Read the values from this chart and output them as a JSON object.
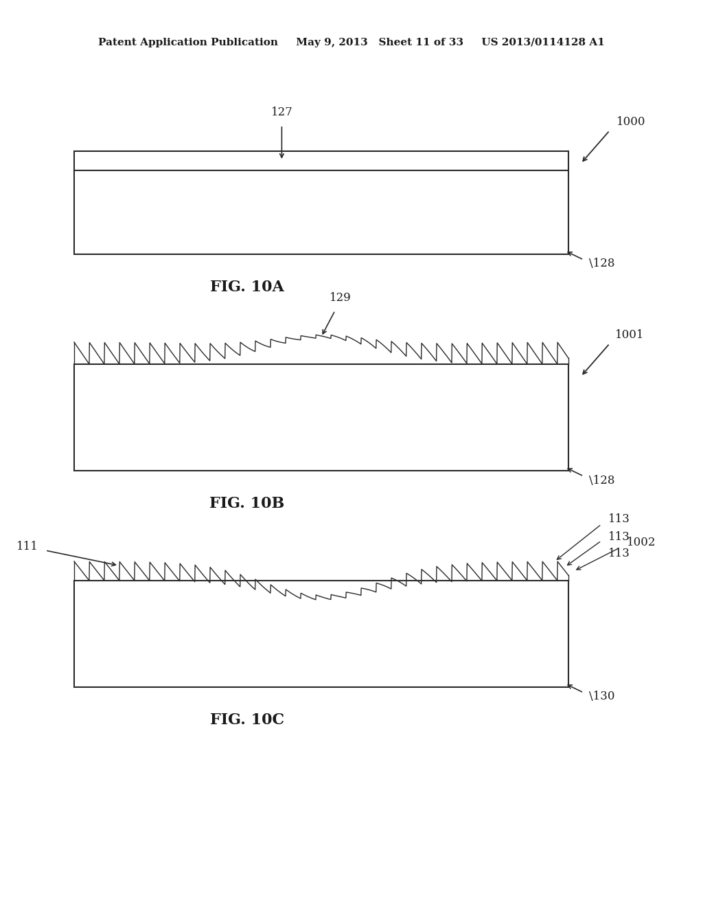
{
  "bg_color": "#ffffff",
  "header_text": "Patent Application Publication     May 9, 2013   Sheet 11 of 33     US 2013/0114128 A1",
  "fig_label_10A": "FIG. 10A",
  "fig_label_10B": "FIG. 10B",
  "fig_label_10C": "FIG. 10C",
  "label_1000": "1000",
  "label_1001": "1001",
  "label_1002": "1002",
  "label_127": "127",
  "label_128": "128",
  "label_129": "129",
  "label_111": "111",
  "label_113": "113",
  "label_130": "130",
  "line_color": "#2a2a2a",
  "fill_color": "#f0f0f0",
  "text_color": "#1a1a1a"
}
